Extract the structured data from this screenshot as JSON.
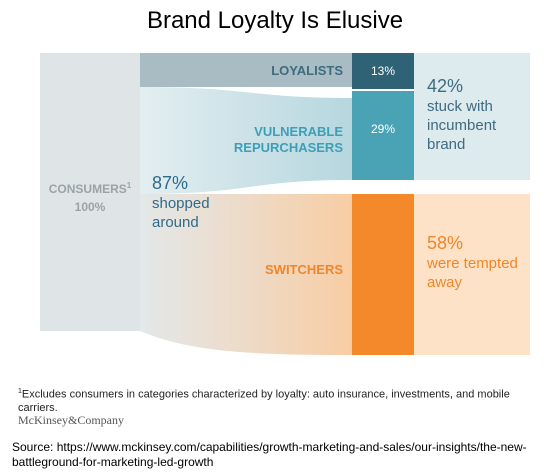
{
  "title": "Brand Loyalty Is Elusive",
  "colors": {
    "consumers": "#dfe4e6",
    "loyalists_flow": "#a9bcc4",
    "loyalists_bar": "#2f6274",
    "vulnerable_bar": "#4aa3b5",
    "switchers_bar": "#f3892a",
    "stuck_band": "#ddeaee",
    "tempted_band": "#fde2c7"
  },
  "nodes": {
    "consumers": {
      "label": "CONSUMERS",
      "sup": "1",
      "value": "100%"
    },
    "loyalists": {
      "label": "LOYALISTS",
      "value": "13%"
    },
    "vulnerable": {
      "label_line1": "VULNERABLE",
      "label_line2": "REPURCHASERS",
      "value": "29%"
    },
    "switchers": {
      "label": "SWITCHERS"
    }
  },
  "annotations": {
    "shopped": {
      "pct": "87%",
      "line1": "shopped",
      "line2": "around"
    },
    "stuck": {
      "pct": "42%",
      "line1": "stuck with",
      "line2": "incumbent",
      "line3": "brand"
    },
    "tempted": {
      "pct": "58%",
      "line1": "were tempted",
      "line2": "away"
    }
  },
  "footnote": {
    "sup": "1",
    "text": "Excludes consumers in categories characterized by loyalty: auto insurance, investments, and mobile carriers."
  },
  "brand": "McKinsey&Company",
  "source": "Source: https://www.mckinsey.com/capabilities/growth-marketing-and-sales/our-insights/the-new-battleground-for-marketing-led-growth"
}
